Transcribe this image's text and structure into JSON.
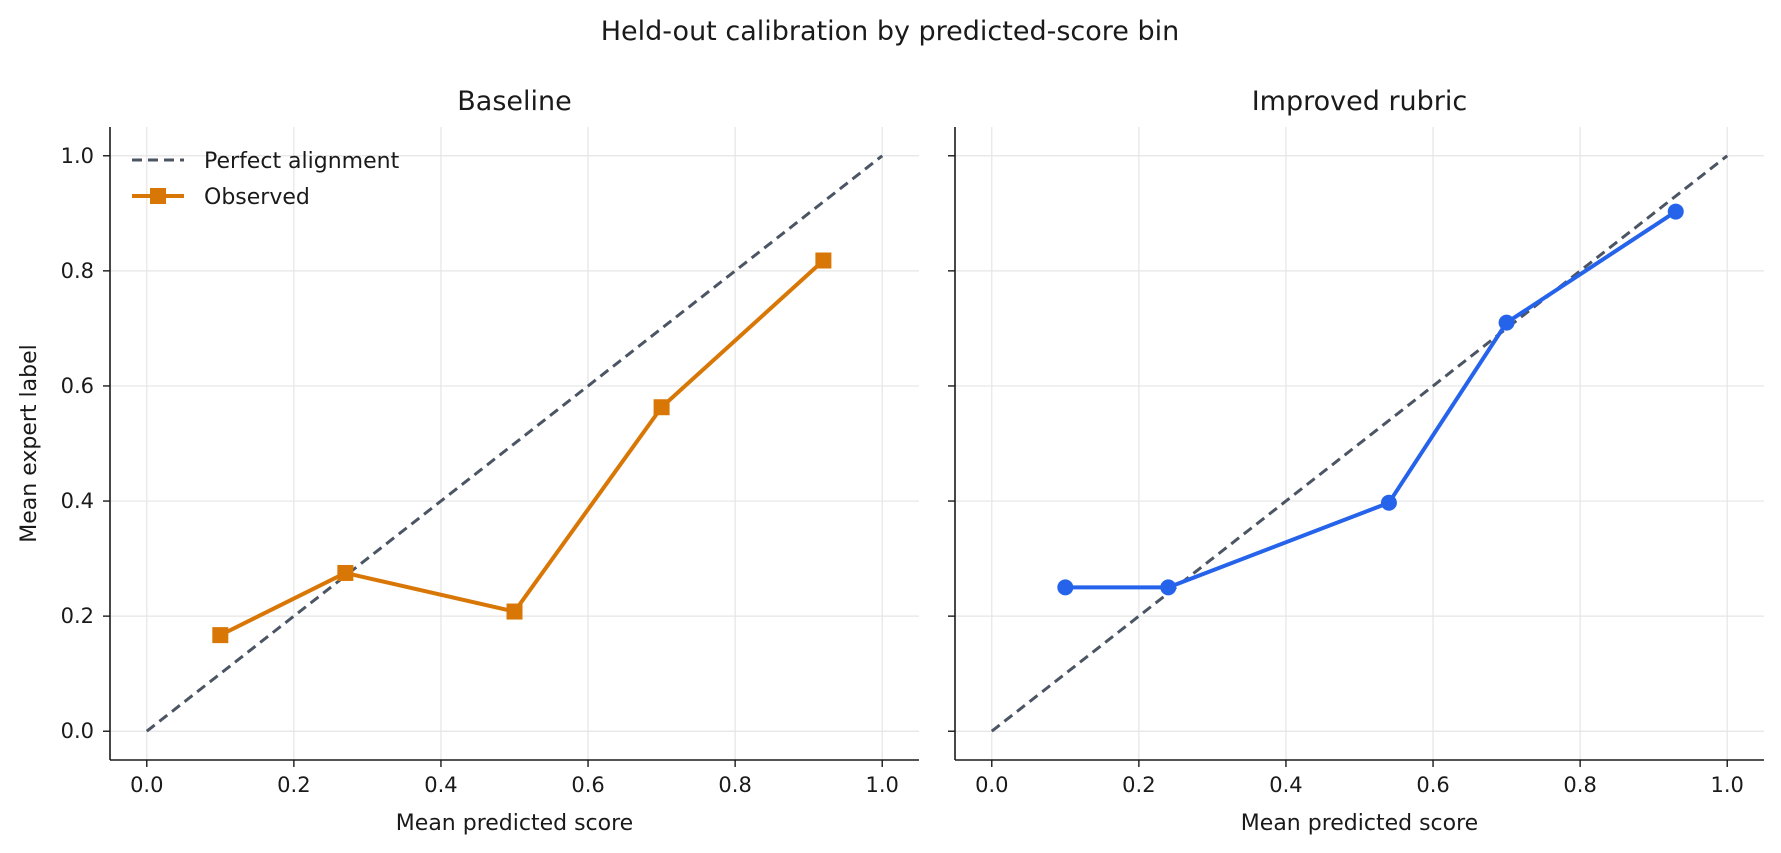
{
  "chart_data": {
    "suptitle": "Held-out calibration by predicted-score bin",
    "panels": [
      {
        "type": "line",
        "title": "Baseline",
        "xlabel": "Mean predicted score",
        "ylabel": "Mean expert label",
        "xlim": [
          -0.05,
          1.05
        ],
        "ylim": [
          -0.05,
          1.05
        ],
        "xticks": [
          "0.0",
          "0.2",
          "0.4",
          "0.6",
          "0.8",
          "1.0"
        ],
        "yticks": [
          "0.0",
          "0.2",
          "0.4",
          "0.6",
          "0.8",
          "1.0"
        ],
        "grid": true,
        "legend": {
          "position": "top-left",
          "entries": [
            "Perfect alignment",
            "Observed"
          ]
        },
        "series": [
          {
            "name": "Perfect alignment",
            "style": "dashed",
            "color": "#4b5563",
            "x": [
              0,
              1
            ],
            "y": [
              0,
              1
            ]
          },
          {
            "name": "Observed",
            "marker": "square",
            "color": "#d97706",
            "x": [
              0.1,
              0.27,
              0.5,
              0.7,
              0.92
            ],
            "y": [
              0.167,
              0.275,
              0.208,
              0.563,
              0.818
            ]
          }
        ]
      },
      {
        "type": "line",
        "title": "Improved rubric",
        "xlabel": "Mean predicted score",
        "ylabel": "",
        "xlim": [
          -0.05,
          1.05
        ],
        "ylim": [
          -0.05,
          1.05
        ],
        "xticks": [
          "0.0",
          "0.2",
          "0.4",
          "0.6",
          "0.8",
          "1.0"
        ],
        "yticks": [],
        "grid": true,
        "series": [
          {
            "name": "Perfect alignment",
            "style": "dashed",
            "color": "#4b5563",
            "x": [
              0,
              1
            ],
            "y": [
              0,
              1
            ]
          },
          {
            "name": "Observed",
            "marker": "circle",
            "color": "#2563eb",
            "x": [
              0.1,
              0.24,
              0.54,
              0.7,
              0.93
            ],
            "y": [
              0.25,
              0.25,
              0.397,
              0.71,
              0.903
            ]
          }
        ]
      }
    ]
  }
}
